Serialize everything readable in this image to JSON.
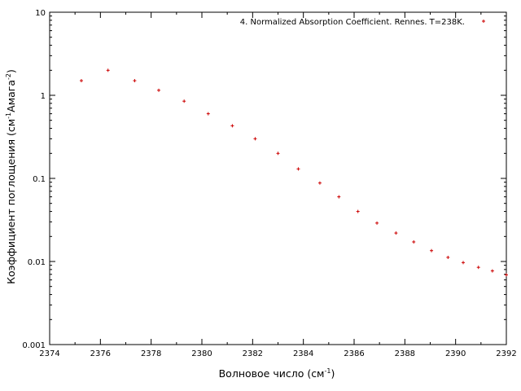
{
  "chart_data": {
    "type": "scatter",
    "xlabel_main": "Волновое число (см",
    "xlabel_sup": "-1",
    "xlabel_end": ")",
    "ylabel_main": "Коэффициент поглощения (см",
    "ylabel_sup1": "-1",
    "ylabel_mid": "Амага",
    "ylabel_sup2": "-2",
    "ylabel_end": ")",
    "xlim": [
      2374,
      2392
    ],
    "ylim": [
      0.001,
      10
    ],
    "y_scale": "log",
    "x_ticks": [
      "2374",
      "2376",
      "2378",
      "2380",
      "2382",
      "2384",
      "2386",
      "2388",
      "2390",
      "2392"
    ],
    "y_ticks": [
      "0.001",
      "0.01",
      "0.1",
      "1",
      "10"
    ],
    "legend_position": "top-right",
    "series": [
      {
        "name": "4. Normalized Absorption Coefficient. Rennes. T=238K.",
        "color": "#cc0000",
        "marker": "plus",
        "x": [
          2375.25,
          2376.3,
          2377.35,
          2378.3,
          2379.3,
          2380.25,
          2381.2,
          2382.1,
          2383.0,
          2383.8,
          2384.65,
          2385.4,
          2386.15,
          2386.9,
          2387.65,
          2388.35,
          2389.05,
          2389.7,
          2390.3,
          2390.9,
          2391.45,
          2392.0
        ],
        "y": [
          1.5,
          2.0,
          1.5,
          1.15,
          0.85,
          0.6,
          0.43,
          0.3,
          0.2,
          0.13,
          0.088,
          0.06,
          0.04,
          0.029,
          0.022,
          0.0172,
          0.0135,
          0.0112,
          0.0097,
          0.0085,
          0.0077,
          0.0069
        ]
      }
    ]
  }
}
